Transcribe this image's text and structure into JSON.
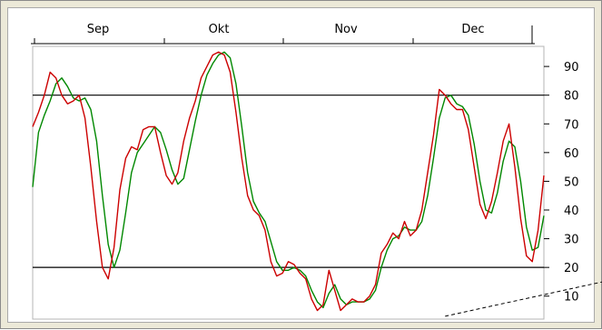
{
  "colors": {
    "background": "#ece9d8",
    "plot_background": "#ffffff",
    "fast_line": "#cc0000",
    "slow_line": "#008800",
    "reference_lines": "#000000",
    "trendline": "#000000"
  },
  "chart_data": {
    "type": "line",
    "title": "",
    "xlabel": "",
    "ylabel": "",
    "ylim": [
      2,
      97
    ],
    "grid": false,
    "legend": "none",
    "x_axis_position": "top",
    "y_axis_position": "right",
    "x_tick_labels": [
      "Sep",
      "Okt",
      "Nov",
      "Dec"
    ],
    "y_ticks": [
      10,
      20,
      30,
      40,
      50,
      60,
      70,
      80,
      90
    ],
    "reference_lines": [
      20,
      80
    ],
    "trendline": {
      "style": "dashed",
      "start": [
        71.0,
        3.0
      ],
      "end": [
        114.0,
        22.0
      ]
    },
    "series": [
      {
        "values": [
          69,
          74,
          80,
          88,
          86,
          80,
          77,
          78,
          80,
          72,
          55,
          36,
          20,
          16,
          27,
          47,
          58,
          62,
          61,
          68,
          69,
          69,
          60,
          52,
          49,
          53,
          64,
          72,
          78,
          86,
          90,
          94,
          95,
          94,
          88,
          74,
          58,
          45,
          40,
          38,
          33,
          22,
          17,
          18,
          22,
          21,
          18,
          16,
          9,
          5,
          7,
          19,
          12,
          5,
          7,
          9,
          8,
          8,
          10,
          14,
          25,
          28,
          32,
          30,
          36,
          31,
          33,
          40,
          53,
          66,
          82,
          80,
          77,
          75,
          75,
          68,
          55,
          42,
          37,
          43,
          53,
          64,
          70,
          55,
          37,
          24,
          22,
          33,
          52
        ]
      },
      {
        "values": [
          48,
          67,
          73,
          78,
          84,
          86,
          83,
          79,
          78,
          79,
          75,
          64,
          45,
          28,
          20,
          26,
          39,
          53,
          60,
          63,
          66,
          69,
          67,
          61,
          54,
          49,
          51,
          61,
          71,
          80,
          87,
          91,
          94,
          95,
          93,
          84,
          69,
          53,
          43,
          39,
          36,
          29,
          22,
          19,
          19,
          20,
          19,
          17,
          12,
          8,
          6,
          11,
          14,
          9,
          7,
          8,
          8,
          8,
          9,
          12,
          20,
          26,
          30,
          31,
          34,
          33,
          33,
          36,
          45,
          58,
          72,
          79,
          80,
          77,
          76,
          73,
          63,
          50,
          40,
          39,
          46,
          57,
          64,
          62,
          50,
          34,
          26,
          27,
          38
        ]
      }
    ]
  }
}
